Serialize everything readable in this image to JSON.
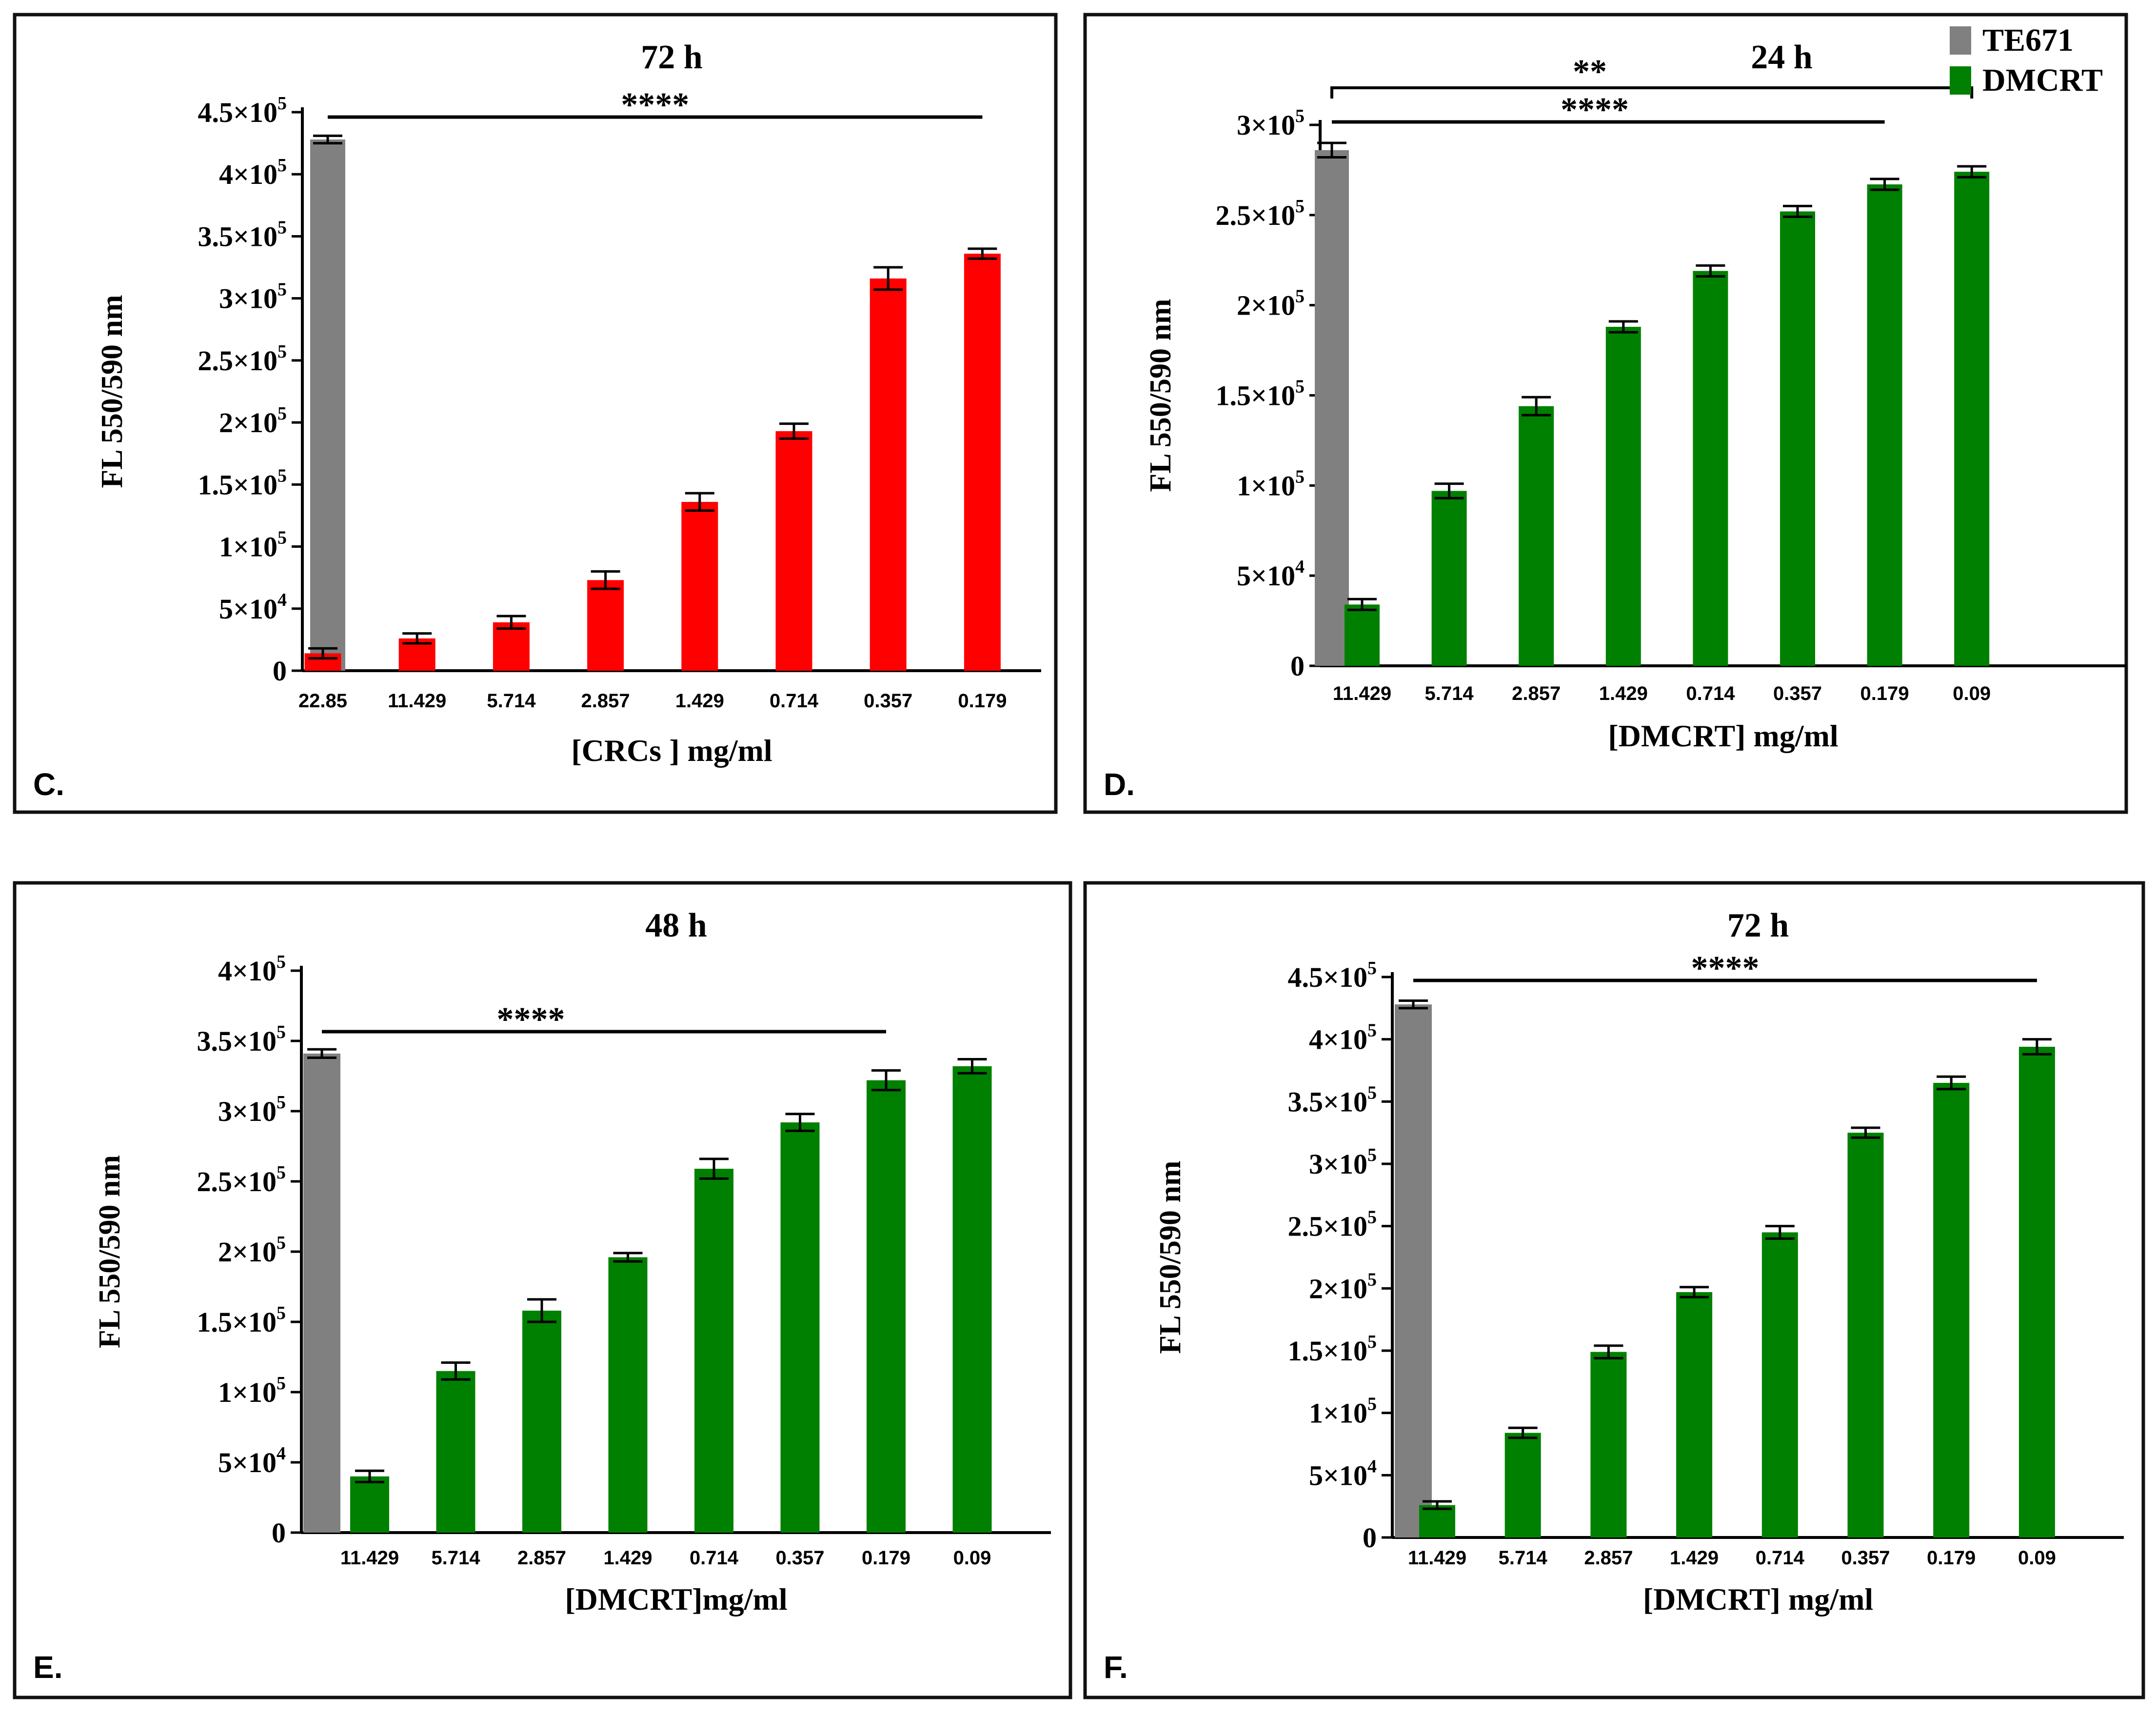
{
  "figure": {
    "legend": [
      {
        "label": "TE671",
        "color": "#808080"
      },
      {
        "label": "DMCRT",
        "color": "#008000"
      }
    ]
  },
  "chart_data": [
    {
      "type": "bar",
      "panel_label": "C.",
      "title": "72 h",
      "xlabel": "[CRCs ] mg/ml",
      "ylabel": "FL 550/590 nm",
      "ylim": [
        0,
        450000
      ],
      "yticks": [
        0,
        50000,
        100000,
        150000,
        200000,
        250000,
        300000,
        350000,
        400000,
        450000
      ],
      "ytick_labels": [
        {
          "mant": "0",
          "exp": ""
        },
        {
          "mant": "5×10",
          "exp": "4"
        },
        {
          "mant": "1×10",
          "exp": "5"
        },
        {
          "mant": "1.5×10",
          "exp": "5"
        },
        {
          "mant": "2×10",
          "exp": "5"
        },
        {
          "mant": "2.5×10",
          "exp": "5"
        },
        {
          "mant": "3×10",
          "exp": "5"
        },
        {
          "mant": "3.5×10",
          "exp": "5"
        },
        {
          "mant": "4×10",
          "exp": "5"
        },
        {
          "mant": "4.5×10",
          "exp": "5"
        }
      ],
      "control": {
        "name": "TE671",
        "value": 428000,
        "error": 3000,
        "color": "#808080"
      },
      "series": [
        {
          "name": "CRCs",
          "color": "#ff0000",
          "categories": [
            "22.85",
            "11.429",
            "5.714",
            "2.857",
            "1.429",
            "0.714",
            "0.357",
            "0.179"
          ],
          "values": [
            14000,
            26000,
            39000,
            73000,
            136000,
            193000,
            316000,
            336000
          ],
          "errors": [
            4000,
            4000,
            5000,
            7000,
            7000,
            6000,
            9000,
            4000
          ]
        }
      ],
      "significance": [
        {
          "label": "****",
          "to_index": 7,
          "style": "line"
        }
      ]
    },
    {
      "type": "bar",
      "panel_label": "D.",
      "title": "24 h",
      "xlabel": "[DMCRT] mg/ml",
      "ylabel": "FL 550/590 nm",
      "ylim": [
        0,
        300000
      ],
      "yticks": [
        0,
        50000,
        100000,
        150000,
        200000,
        250000,
        300000
      ],
      "ytick_labels": [
        {
          "mant": "0",
          "exp": ""
        },
        {
          "mant": "5×10",
          "exp": "4"
        },
        {
          "mant": "1×10",
          "exp": "5"
        },
        {
          "mant": "1.5×10",
          "exp": "5"
        },
        {
          "mant": "2×10",
          "exp": "5"
        },
        {
          "mant": "2.5×10",
          "exp": "5"
        },
        {
          "mant": "3×10",
          "exp": "5"
        }
      ],
      "control": {
        "name": "TE671",
        "value": 286000,
        "error": 4000,
        "color": "#808080"
      },
      "series": [
        {
          "name": "DMCRT",
          "color": "#008000",
          "categories": [
            "11.429",
            "5.714",
            "2.857",
            "1.429",
            "0.714",
            "0.357",
            "0.179",
            "0.09"
          ],
          "values": [
            34000,
            97000,
            144000,
            188000,
            219000,
            252000,
            267000,
            274000
          ],
          "errors": [
            3000,
            4000,
            5000,
            3000,
            3000,
            3000,
            3000,
            3000
          ]
        }
      ],
      "significance": [
        {
          "label": "**",
          "to_index": 7,
          "style": "bracket"
        },
        {
          "label": "****",
          "to_index": 6,
          "style": "line"
        }
      ]
    },
    {
      "type": "bar",
      "panel_label": "E.",
      "title": "48 h",
      "xlabel": "[DMCRT]mg/ml",
      "ylabel": "FL 550/590 nm",
      "ylim": [
        0,
        400000
      ],
      "yticks": [
        0,
        50000,
        100000,
        150000,
        200000,
        250000,
        300000,
        350000,
        400000
      ],
      "ytick_labels": [
        {
          "mant": "0",
          "exp": ""
        },
        {
          "mant": "5×10",
          "exp": "4"
        },
        {
          "mant": "1×10",
          "exp": "5"
        },
        {
          "mant": "1.5×10",
          "exp": "5"
        },
        {
          "mant": "2×10",
          "exp": "5"
        },
        {
          "mant": "2.5×10",
          "exp": "5"
        },
        {
          "mant": "3×10",
          "exp": "5"
        },
        {
          "mant": "3.5×10",
          "exp": "5"
        },
        {
          "mant": "4×10",
          "exp": "5"
        }
      ],
      "control": {
        "name": "TE671",
        "value": 341000,
        "error": 3000,
        "color": "#808080"
      },
      "series": [
        {
          "name": "DMCRT",
          "color": "#008000",
          "categories": [
            "11.429",
            "5.714",
            "2.857",
            "1.429",
            "0.714",
            "0.357",
            "0.179",
            "0.09"
          ],
          "values": [
            40000,
            115000,
            158000,
            196000,
            259000,
            292000,
            322000,
            332000
          ],
          "errors": [
            4000,
            6000,
            8000,
            3000,
            7000,
            6000,
            7000,
            5000
          ]
        }
      ],
      "significance": [
        {
          "label": "****",
          "to_index": 6,
          "style": "line"
        }
      ]
    },
    {
      "type": "bar",
      "panel_label": "F.",
      "title": "72 h",
      "xlabel": "[DMCRT] mg/ml",
      "ylabel": "FL 550/590 nm",
      "ylim": [
        0,
        450000
      ],
      "yticks": [
        0,
        50000,
        100000,
        150000,
        200000,
        250000,
        300000,
        350000,
        400000,
        450000
      ],
      "ytick_labels": [
        {
          "mant": "0",
          "exp": ""
        },
        {
          "mant": "5×10",
          "exp": "4"
        },
        {
          "mant": "1×10",
          "exp": "5"
        },
        {
          "mant": "1.5×10",
          "exp": "5"
        },
        {
          "mant": "2×10",
          "exp": "5"
        },
        {
          "mant": "2.5×10",
          "exp": "5"
        },
        {
          "mant": "3×10",
          "exp": "5"
        },
        {
          "mant": "3.5×10",
          "exp": "5"
        },
        {
          "mant": "4×10",
          "exp": "5"
        },
        {
          "mant": "4.5×10",
          "exp": "5"
        }
      ],
      "control": {
        "name": "TE671",
        "value": 428000,
        "error": 3000,
        "color": "#808080"
      },
      "series": [
        {
          "name": "DMCRT",
          "color": "#008000",
          "categories": [
            "11.429",
            "5.714",
            "2.857",
            "1.429",
            "0.714",
            "0.357",
            "0.179",
            "0.09"
          ],
          "values": [
            26000,
            84000,
            149000,
            197000,
            245000,
            325000,
            365000,
            394000
          ],
          "errors": [
            3000,
            4000,
            5000,
            4000,
            5000,
            4000,
            5000,
            6000
          ]
        }
      ],
      "significance": [
        {
          "label": "****",
          "to_index": 7,
          "style": "line"
        }
      ]
    }
  ]
}
